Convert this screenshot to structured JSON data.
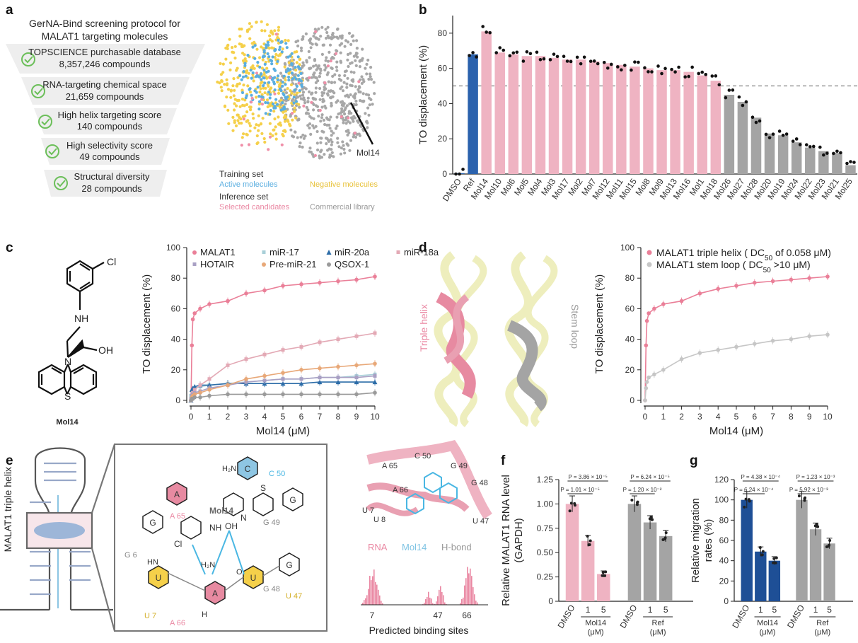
{
  "panels": {
    "a": "a",
    "b": "b",
    "c": "c",
    "d": "d",
    "e": "e",
    "f": "f",
    "g": "g"
  },
  "panel_a": {
    "title_line1": "GerNA-Bind screening protocol for",
    "title_line2": "MALAT1 targeting molecules",
    "funnel": [
      {
        "line1": "TOPSCIENCE purchasable database",
        "line2": "8,357,246 compounds"
      },
      {
        "line1": "RNA-targeting chemical space",
        "line2": "21,659 compounds"
      },
      {
        "line1": "High helix targeting score",
        "line2": "140 compounds"
      },
      {
        "line1": "High selectivity score",
        "line2": "49 compounds"
      },
      {
        "line1": "Structural diversity",
        "line2": "28 compounds"
      }
    ],
    "tsne_annotation": "Mol14",
    "legend": {
      "training_title": "Training set",
      "active": "Active molecules",
      "negative": "Negative molecules",
      "inference_title": "Inference set",
      "selected": "Selected candidates",
      "commercial": "Commercial library"
    },
    "colors": {
      "active": "#5aaee0",
      "negative": "#f5d04a",
      "selected": "#f08fa8",
      "commercial": "#a7a7a7"
    }
  },
  "panel_e": {
    "side_label": "MALAT1 triple helix",
    "mol_label": "Mol14",
    "nucleotides": {
      "c50": "C 50",
      "a65": "A 65",
      "g49": "G 49",
      "g6": "G 6",
      "g48": "G 48",
      "u7": "U 7",
      "a66": "A 66",
      "u47": "U 47"
    },
    "base_letters": {
      "c": "C",
      "a": "A",
      "g": "G",
      "u": "U"
    },
    "groups": {
      "nh2": "H₂N",
      "nh": "NH",
      "oh": "OH",
      "n": "N",
      "s": "S",
      "cl": "Cl",
      "h2n": "H₂N",
      "h": "H",
      "o": "O",
      "hn": "HN"
    },
    "struct_labels": {
      "c50": "C 50",
      "g49": "G 49",
      "g48": "G 48",
      "a65": "A 65",
      "a66": "A 66",
      "u7": "U 7",
      "u8": "U 8",
      "u47": "U 47"
    },
    "legend": {
      "rna": "RNA",
      "mol14": "Mol14",
      "hbond": "H-bond"
    },
    "hist_ticks": [
      "7",
      "47",
      "66"
    ],
    "hist_xlabel": "Predicted binding sites"
  },
  "panel_c_structure": {
    "name": "Mol14",
    "cl": "Cl",
    "nh": "NH",
    "oh": "OH",
    "n": "N",
    "s": "S"
  },
  "panel_d_structure": {
    "triple": "Triple helix",
    "stem": "Stem loop"
  },
  "chart_data": [
    {
      "id": "b",
      "type": "bar",
      "ylabel": "TO displacement (%)",
      "ylim": [
        0,
        90
      ],
      "yticks": [
        0,
        20,
        40,
        60,
        80
      ],
      "threshold": 50,
      "categories": [
        "DMSO",
        "Ref",
        "Mol14",
        "Mol10",
        "Mol6",
        "Mol5",
        "Mol4",
        "Mol3",
        "Mol17",
        "Mol2",
        "Mol7",
        "Mol12",
        "Mol11",
        "Mol15",
        "Mol8",
        "Mol9",
        "Mol13",
        "Mol16",
        "Mol1",
        "Mol18",
        "Mol26",
        "Mol27",
        "Mol28",
        "Mol20",
        "Mol19",
        "Mol24",
        "Mol22",
        "Mol23",
        "Mol21",
        "Mol25"
      ],
      "values": [
        0.5,
        68,
        81,
        69,
        68,
        67,
        67,
        66,
        65,
        65,
        64,
        63,
        62,
        61,
        60,
        59,
        59,
        58,
        56,
        53,
        45,
        41,
        32,
        23,
        22,
        18,
        15,
        13,
        12,
        5
      ],
      "group": [
        "blue",
        "blue",
        "pink",
        "pink",
        "pink",
        "pink",
        "pink",
        "pink",
        "pink",
        "pink",
        "pink",
        "pink",
        "pink",
        "pink",
        "pink",
        "pink",
        "pink",
        "pink",
        "pink",
        "pink",
        "grey",
        "grey",
        "grey",
        "grey",
        "grey",
        "grey",
        "grey",
        "grey",
        "grey",
        "grey"
      ],
      "colors": {
        "blue": "#2b62ad",
        "pink": "#efb3c2",
        "grey": "#a4a4a4"
      }
    },
    {
      "id": "c",
      "type": "line",
      "xlabel": "Mol14 (μM)",
      "ylabel": "TO displacement (%)",
      "xlim": [
        0,
        10
      ],
      "ylim": [
        0,
        100
      ],
      "xticks": [
        0,
        1,
        2,
        3,
        4,
        5,
        6,
        7,
        8,
        9,
        10
      ],
      "yticks": [
        0,
        20,
        40,
        60,
        80,
        100
      ],
      "x": [
        0,
        0.05,
        0.1,
        0.2,
        0.5,
        1,
        2,
        3,
        4,
        5,
        6,
        7,
        8,
        9,
        10
      ],
      "series": [
        {
          "name": "MALAT1",
          "color": "#ea7f98",
          "marker": "circle",
          "values": [
            0,
            36,
            53,
            57,
            60,
            63,
            65,
            70,
            72,
            75,
            76,
            77,
            78,
            79,
            81
          ]
        },
        {
          "name": "miR-17",
          "color": "#a8cfd8",
          "marker": "square",
          "values": [
            3,
            5,
            7,
            8,
            9,
            10,
            11,
            12,
            13,
            14,
            14,
            15,
            15,
            16,
            17
          ]
        },
        {
          "name": "miR-20a",
          "color": "#2d6da8",
          "marker": "triangle",
          "values": [
            0,
            7,
            8,
            9,
            10,
            10,
            11,
            11,
            11,
            11,
            11,
            12,
            12,
            12,
            12
          ]
        },
        {
          "name": "miR-18a",
          "color": "#e3a9b5",
          "marker": "square",
          "values": [
            0,
            4,
            5,
            7,
            10,
            14,
            23,
            27,
            30,
            33,
            35,
            38,
            40,
            42,
            44
          ]
        },
        {
          "name": "HOTAIR",
          "color": "#a9a0c4",
          "marker": "square",
          "values": [
            1,
            3,
            4,
            5,
            6,
            8,
            10,
            12,
            13,
            14,
            14,
            15,
            15,
            15,
            16
          ]
        },
        {
          "name": "Pre-miR-21",
          "color": "#e8a878",
          "marker": "circle",
          "values": [
            0,
            2,
            3,
            4,
            5,
            7,
            10,
            14,
            16,
            18,
            20,
            21,
            22,
            23,
            24
          ]
        },
        {
          "name": "QSOX-1",
          "color": "#9a9a9a",
          "marker": "circle",
          "values": [
            0,
            1,
            1,
            2,
            2,
            3,
            4,
            4,
            4,
            4,
            4,
            4,
            4,
            4,
            5
          ]
        }
      ]
    },
    {
      "id": "d",
      "type": "line",
      "xlabel": "Mol14 (μM)",
      "ylabel": "TO displacement (%)",
      "xlim": [
        0,
        10
      ],
      "ylim": [
        0,
        100
      ],
      "xticks": [
        0,
        1,
        2,
        3,
        4,
        5,
        6,
        7,
        8,
        9,
        10
      ],
      "yticks": [
        0,
        20,
        40,
        60,
        80,
        100
      ],
      "x": [
        0,
        0.05,
        0.1,
        0.2,
        0.5,
        1,
        2,
        3,
        4,
        5,
        6,
        7,
        8,
        9,
        10
      ],
      "series": [
        {
          "name": "MALAT1 triple helix",
          "legend_pre": "MALAT1 triple helix ( DC",
          "legend_sub": "50",
          "legend_post": " of 0.058 μM)",
          "color": "#ea7f98",
          "values": [
            0,
            36,
            52,
            57,
            60,
            63,
            65,
            70,
            73,
            75,
            77,
            78,
            79,
            80,
            81
          ]
        },
        {
          "name": "MALAT1 stem loop",
          "legend_pre": "MALAT1 stem loop ( DC",
          "legend_sub": "50",
          "legend_post": " >10 μM)",
          "color": "#c6c6c6",
          "values": [
            0,
            8,
            12,
            15,
            17,
            20,
            27,
            31,
            33,
            35,
            37,
            39,
            40,
            42,
            43
          ]
        }
      ]
    },
    {
      "id": "e_hist",
      "type": "bar",
      "title": "Predicted binding sites",
      "ticks": [
        "7",
        "47",
        "66"
      ]
    },
    {
      "id": "f",
      "type": "bar",
      "ylabel_line1": "Relative MALAT1 RNA level",
      "ylabel_line2": "(GAPDH)",
      "ylim": [
        0,
        1.25
      ],
      "yticks": [
        "0",
        "0.25",
        "0.50",
        "0.75",
        "1.00",
        "1.25"
      ],
      "categories": [
        "DMSO",
        "1",
        "5",
        "DMSO",
        "1",
        "5"
      ],
      "values": [
        1.0,
        0.62,
        0.28,
        1.0,
        0.81,
        0.67
      ],
      "colors": [
        "#efb3c2",
        "#efb3c2",
        "#efb3c2",
        "#a4a4a4",
        "#a4a4a4",
        "#a4a4a4"
      ],
      "group_labels": [
        {
          "line1": "Mol14",
          "line2": "(μM)"
        },
        {
          "line1": "Ref",
          "line2": "(μM)"
        }
      ],
      "pvalues": [
        {
          "p": "P = 3.86 × 10⁻⁵",
          "from": 0,
          "to": 2
        },
        {
          "p": "P = 1.01 × 10⁻⁵",
          "from": 0,
          "to": 1
        },
        {
          "p": "P = 6.24 × 10⁻⁵",
          "from": 3,
          "to": 5
        },
        {
          "p": "P = 1.20 × 10⁻²",
          "from": 3,
          "to": 4
        }
      ]
    },
    {
      "id": "g",
      "type": "bar",
      "ylabel_line1": "Relative migration",
      "ylabel_line2": "rates (%)",
      "ylim": [
        0,
        120
      ],
      "yticks": [
        "0",
        "20",
        "40",
        "60",
        "80",
        "100",
        "120"
      ],
      "categories": [
        "DMSO",
        "1",
        "5",
        "DMSO",
        "1",
        "5"
      ],
      "values": [
        100,
        49,
        40,
        100,
        71,
        57
      ],
      "colors": [
        "#1e4f96",
        "#1e4f96",
        "#1e4f96",
        "#a4a4a4",
        "#a4a4a4",
        "#a4a4a4"
      ],
      "group_labels": [
        {
          "line1": "Mol14",
          "line2": "(μM)"
        },
        {
          "line1": "Ref",
          "line2": "(μM)"
        }
      ],
      "pvalues": [
        {
          "p": "P = 4.38 × 10⁻⁴",
          "from": 0,
          "to": 2
        },
        {
          "p": "P = 6.24 × 10⁻⁴",
          "from": 0,
          "to": 1
        },
        {
          "p": "P = 1.23 × 10⁻³",
          "from": 3,
          "to": 5
        },
        {
          "p": "P = 5.92 × 10⁻³",
          "from": 3,
          "to": 4
        }
      ]
    }
  ]
}
